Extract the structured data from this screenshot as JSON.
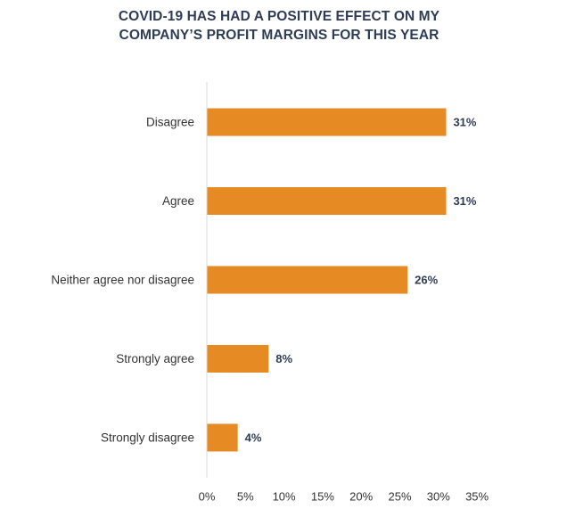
{
  "chart_data": {
    "type": "bar",
    "orientation": "horizontal",
    "title_lines": [
      "COVID-19 HAS HAD A POSITIVE EFFECT ON MY",
      "COMPANY’S PROFIT MARGINS FOR THIS YEAR"
    ],
    "categories": [
      "Disagree",
      "Agree",
      "Neither agree nor disagree",
      "Strongly agree",
      "Strongly disagree"
    ],
    "values": [
      31,
      31,
      26,
      8,
      4
    ],
    "data_labels": [
      "31%",
      "31%",
      "26%",
      "8%",
      "4%"
    ],
    "xlim": [
      0,
      35
    ],
    "xticks": [
      0,
      5,
      10,
      15,
      20,
      25,
      30,
      35
    ],
    "xtick_labels": [
      "0%",
      "5%",
      "10%",
      "15%",
      "20%",
      "25%",
      "30%",
      "35%"
    ],
    "grid": false,
    "legend": "none",
    "colors": {
      "bar": "#e68a24",
      "axis": "#d9d9d9",
      "title": "#2e3c55",
      "data_label": "#2e3c55",
      "text": "#333333"
    }
  }
}
